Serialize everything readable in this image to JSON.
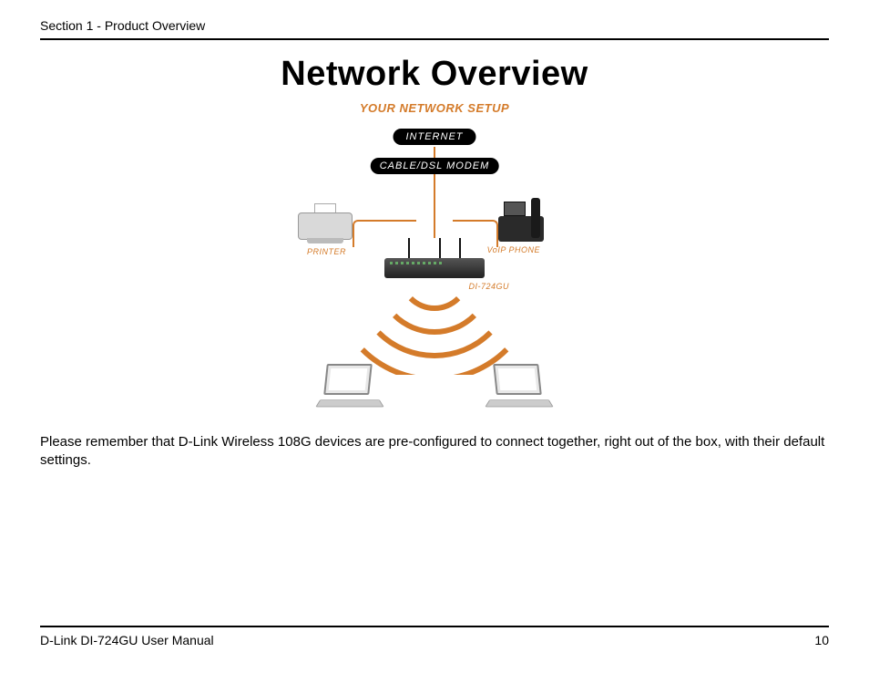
{
  "header": {
    "section": "Section 1 - Product Overview"
  },
  "title": "Network Overview",
  "diagram": {
    "setup_label": "YOUR NETWORK SETUP",
    "internet_label": "INTERNET",
    "modem_label": "CABLE/DSL MODEM",
    "printer_label": "PRINTER",
    "phone_label": "VoIP PHONE",
    "router_label": "DI-724GU",
    "colors": {
      "accent": "#d47b2a",
      "pill_bg": "#000000",
      "pill_fg": "#ffffff",
      "device_gray": "#cccccc",
      "device_dark": "#2a2a2a"
    },
    "wifi_arcs": 4,
    "arc_stroke_width": 6
  },
  "body_text": "Please remember that D-Link Wireless 108G devices are pre-configured to connect together, right out of the box, with their default settings.",
  "footer": {
    "manual": "D-Link DI-724GU User Manual",
    "page": "10"
  }
}
